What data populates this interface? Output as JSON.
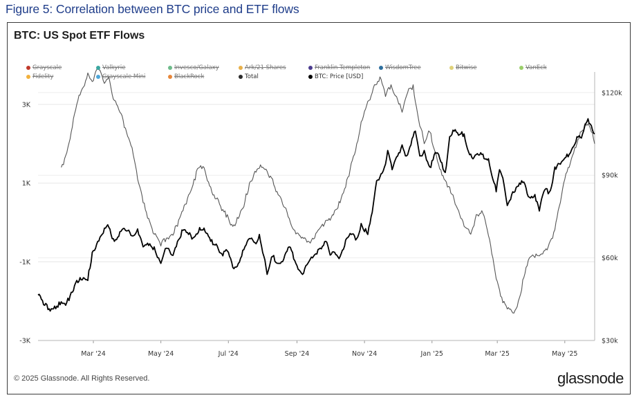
{
  "figure_title": "Figure 5: Correlation between BTC price and ETF flows",
  "copyright": "© 2025 Glassnode. All Rights Reserved.",
  "brand": "glassnode",
  "chart_data": {
    "type": "line",
    "title": "BTC: US Spot ETF Flows",
    "legend_placement": "top",
    "grid": true,
    "legend": [
      {
        "name": "Grayscale",
        "color": "#c0392b",
        "enabled": false
      },
      {
        "name": "Valkyrie",
        "color": "#3aa7a0",
        "enabled": false
      },
      {
        "name": "Invesco/Galaxy",
        "color": "#6dbb8a",
        "enabled": false
      },
      {
        "name": "Ark/21 Shares",
        "color": "#e8b04a",
        "enabled": false
      },
      {
        "name": "Franklin Templeton",
        "color": "#4b3c8f",
        "enabled": false
      },
      {
        "name": "WisdomTree",
        "color": "#2e6f9e",
        "enabled": false
      },
      {
        "name": "Bitwise",
        "color": "#e0d27a",
        "enabled": false
      },
      {
        "name": "VanEck",
        "color": "#9bcf6a",
        "enabled": false
      },
      {
        "name": "Fidelity",
        "color": "#f2b13c",
        "enabled": false
      },
      {
        "name": "Grayscale Mini",
        "color": "#4ea6d8",
        "enabled": false
      },
      {
        "name": "BlackRock",
        "color": "#e8873a",
        "enabled": false
      },
      {
        "name": "Total",
        "color": "#2b2b2b",
        "enabled": true
      },
      {
        "name": "BTC: Price [USD]",
        "color": "#000000",
        "enabled": true
      }
    ],
    "x_ticks": [
      "Mar '24",
      "May '24",
      "Jul '24",
      "Sep '24",
      "Nov '24",
      "Jan '25",
      "Mar '25",
      "May '25"
    ],
    "x_range": [
      "2024-01-11",
      "2025-05-28"
    ],
    "y_left": {
      "ticks": [
        "-3K",
        "-1K",
        "1K",
        "3K"
      ],
      "range": [
        -3000,
        4000
      ]
    },
    "y_right": {
      "ticks": [
        "$30k",
        "$60k",
        "$90k",
        "$120k"
      ],
      "range": [
        30000,
        130000
      ]
    },
    "series": [
      {
        "name": "Total",
        "axis": "left",
        "color": "#555555",
        "points": [
          [
            "2024-02-01",
            1400
          ],
          [
            "2024-02-05",
            1700
          ],
          [
            "2024-02-10",
            2300
          ],
          [
            "2024-02-15",
            3000
          ],
          [
            "2024-02-20",
            3400
          ],
          [
            "2024-02-25",
            3800
          ],
          [
            "2024-03-01",
            3600
          ],
          [
            "2024-03-05",
            3900
          ],
          [
            "2024-03-10",
            3600
          ],
          [
            "2024-03-15",
            3700
          ],
          [
            "2024-03-20",
            3100
          ],
          [
            "2024-03-25",
            2800
          ],
          [
            "2024-03-30",
            2400
          ],
          [
            "2024-04-05",
            1900
          ],
          [
            "2024-04-10",
            1100
          ],
          [
            "2024-04-15",
            500
          ],
          [
            "2024-04-20",
            100
          ],
          [
            "2024-04-25",
            -300
          ],
          [
            "2024-05-01",
            -600
          ],
          [
            "2024-05-06",
            -400
          ],
          [
            "2024-05-11",
            -300
          ],
          [
            "2024-05-16",
            -100
          ],
          [
            "2024-05-21",
            300
          ],
          [
            "2024-05-26",
            700
          ],
          [
            "2024-05-31",
            1100
          ],
          [
            "2024-06-05",
            1400
          ],
          [
            "2024-06-10",
            1300
          ],
          [
            "2024-06-15",
            900
          ],
          [
            "2024-06-20",
            600
          ],
          [
            "2024-06-25",
            300
          ],
          [
            "2024-06-30",
            200
          ],
          [
            "2024-07-05",
            -100
          ],
          [
            "2024-07-10",
            100
          ],
          [
            "2024-07-15",
            400
          ],
          [
            "2024-07-20",
            1000
          ],
          [
            "2024-07-25",
            1300
          ],
          [
            "2024-07-31",
            1400
          ],
          [
            "2024-08-05",
            1300
          ],
          [
            "2024-08-10",
            1100
          ],
          [
            "2024-08-15",
            700
          ],
          [
            "2024-08-20",
            400
          ],
          [
            "2024-08-25",
            100
          ],
          [
            "2024-08-30",
            -200
          ],
          [
            "2024-09-05",
            -400
          ],
          [
            "2024-09-10",
            -500
          ],
          [
            "2024-09-15",
            -400
          ],
          [
            "2024-09-20",
            -200
          ],
          [
            "2024-09-25",
            -100
          ],
          [
            "2024-09-30",
            100
          ],
          [
            "2024-10-05",
            300
          ],
          [
            "2024-10-10",
            500
          ],
          [
            "2024-10-15",
            900
          ],
          [
            "2024-10-20",
            1500
          ],
          [
            "2024-10-25",
            2000
          ],
          [
            "2024-10-30",
            2600
          ],
          [
            "2024-11-05",
            3100
          ],
          [
            "2024-11-10",
            3500
          ],
          [
            "2024-11-15",
            3700
          ],
          [
            "2024-11-20",
            3200
          ],
          [
            "2024-11-25",
            3500
          ],
          [
            "2024-11-30",
            3200
          ],
          [
            "2024-12-05",
            2800
          ],
          [
            "2024-12-10",
            3300
          ],
          [
            "2024-12-15",
            3500
          ],
          [
            "2024-12-20",
            2600
          ],
          [
            "2024-12-25",
            2000
          ],
          [
            "2024-12-30",
            2300
          ],
          [
            "2025-01-05",
            1700
          ],
          [
            "2025-01-10",
            1200
          ],
          [
            "2025-01-15",
            900
          ],
          [
            "2025-01-20",
            700
          ],
          [
            "2025-01-25",
            300
          ],
          [
            "2025-01-30",
            -100
          ],
          [
            "2025-02-05",
            -300
          ],
          [
            "2025-02-10",
            200
          ],
          [
            "2025-02-15",
            300
          ],
          [
            "2025-02-20",
            -200
          ],
          [
            "2025-02-25",
            -900
          ],
          [
            "2025-03-01",
            -1500
          ],
          [
            "2025-03-05",
            -1900
          ],
          [
            "2025-03-10",
            -2200
          ],
          [
            "2025-03-15",
            -2300
          ],
          [
            "2025-03-20",
            -2000
          ],
          [
            "2025-03-25",
            -1400
          ],
          [
            "2025-03-30",
            -900
          ],
          [
            "2025-04-05",
            -800
          ],
          [
            "2025-04-10",
            -800
          ],
          [
            "2025-04-15",
            -700
          ],
          [
            "2025-04-20",
            -400
          ],
          [
            "2025-04-25",
            300
          ],
          [
            "2025-04-30",
            1000
          ],
          [
            "2025-05-05",
            1400
          ],
          [
            "2025-05-10",
            1900
          ],
          [
            "2025-05-15",
            2300
          ],
          [
            "2025-05-20",
            2500
          ],
          [
            "2025-05-25",
            2300
          ],
          [
            "2025-05-28",
            2000
          ]
        ]
      },
      {
        "name": "BTC: Price [USD]",
        "axis": "right",
        "color": "#000000",
        "points": [
          [
            "2024-01-11",
            46500
          ],
          [
            "2024-01-16",
            43000
          ],
          [
            "2024-01-21",
            41500
          ],
          [
            "2024-01-26",
            42500
          ],
          [
            "2024-01-31",
            43000
          ],
          [
            "2024-02-05",
            42800
          ],
          [
            "2024-02-10",
            47500
          ],
          [
            "2024-02-15",
            51800
          ],
          [
            "2024-02-20",
            52000
          ],
          [
            "2024-02-25",
            51800
          ],
          [
            "2024-02-29",
            62000
          ],
          [
            "2024-03-05",
            66000
          ],
          [
            "2024-03-10",
            69000
          ],
          [
            "2024-03-14",
            72000
          ],
          [
            "2024-03-20",
            66000
          ],
          [
            "2024-03-25",
            69500
          ],
          [
            "2024-03-30",
            70000
          ],
          [
            "2024-04-05",
            68000
          ],
          [
            "2024-04-10",
            70500
          ],
          [
            "2024-04-15",
            64000
          ],
          [
            "2024-04-20",
            64500
          ],
          [
            "2024-04-25",
            64000
          ],
          [
            "2024-05-01",
            58000
          ],
          [
            "2024-05-06",
            63500
          ],
          [
            "2024-05-11",
            61000
          ],
          [
            "2024-05-16",
            66000
          ],
          [
            "2024-05-21",
            70000
          ],
          [
            "2024-05-26",
            68500
          ],
          [
            "2024-05-31",
            67500
          ],
          [
            "2024-06-05",
            71000
          ],
          [
            "2024-06-10",
            69500
          ],
          [
            "2024-06-15",
            66000
          ],
          [
            "2024-06-20",
            65000
          ],
          [
            "2024-06-25",
            61500
          ],
          [
            "2024-06-30",
            62500
          ],
          [
            "2024-07-05",
            56500
          ],
          [
            "2024-07-10",
            58000
          ],
          [
            "2024-07-15",
            63000
          ],
          [
            "2024-07-20",
            67000
          ],
          [
            "2024-07-25",
            65500
          ],
          [
            "2024-07-29",
            68500
          ],
          [
            "2024-08-05",
            54000
          ],
          [
            "2024-08-10",
            60500
          ],
          [
            "2024-08-15",
            58000
          ],
          [
            "2024-08-20",
            59500
          ],
          [
            "2024-08-25",
            64000
          ],
          [
            "2024-08-30",
            59000
          ],
          [
            "2024-09-06",
            54000
          ],
          [
            "2024-09-10",
            57500
          ],
          [
            "2024-09-15",
            60000
          ],
          [
            "2024-09-20",
            63000
          ],
          [
            "2024-09-27",
            66000
          ],
          [
            "2024-10-01",
            61000
          ],
          [
            "2024-10-05",
            62000
          ],
          [
            "2024-10-10",
            60500
          ],
          [
            "2024-10-15",
            66500
          ],
          [
            "2024-10-20",
            68500
          ],
          [
            "2024-10-25",
            67000
          ],
          [
            "2024-10-29",
            72500
          ],
          [
            "2024-11-04",
            68500
          ],
          [
            "2024-11-08",
            76500
          ],
          [
            "2024-11-12",
            88000
          ],
          [
            "2024-11-16",
            90500
          ],
          [
            "2024-11-20",
            94000
          ],
          [
            "2024-11-22",
            99000
          ],
          [
            "2024-11-26",
            92000
          ],
          [
            "2024-12-01",
            97000
          ],
          [
            "2024-12-05",
            101000
          ],
          [
            "2024-12-09",
            97000
          ],
          [
            "2024-12-13",
            101000
          ],
          [
            "2024-12-17",
            106000
          ],
          [
            "2024-12-21",
            97000
          ],
          [
            "2024-12-25",
            99000
          ],
          [
            "2024-12-30",
            93000
          ],
          [
            "2025-01-05",
            98000
          ],
          [
            "2025-01-10",
            94500
          ],
          [
            "2025-01-13",
            91000
          ],
          [
            "2025-01-17",
            104000
          ],
          [
            "2025-01-21",
            106000
          ],
          [
            "2025-01-25",
            104500
          ],
          [
            "2025-01-30",
            105000
          ],
          [
            "2025-02-03",
            98500
          ],
          [
            "2025-02-08",
            96500
          ],
          [
            "2025-02-15",
            97500
          ],
          [
            "2025-02-21",
            96000
          ],
          [
            "2025-02-25",
            88500
          ],
          [
            "2025-02-28",
            84000
          ],
          [
            "2025-03-03",
            92000
          ],
          [
            "2025-03-06",
            89000
          ],
          [
            "2025-03-10",
            79000
          ],
          [
            "2025-03-15",
            84000
          ],
          [
            "2025-03-20",
            86000
          ],
          [
            "2025-03-25",
            87500
          ],
          [
            "2025-03-30",
            82000
          ],
          [
            "2025-04-04",
            83000
          ],
          [
            "2025-04-08",
            77000
          ],
          [
            "2025-04-12",
            84000
          ],
          [
            "2025-04-18",
            84500
          ],
          [
            "2025-04-22",
            93000
          ],
          [
            "2025-04-27",
            94000
          ],
          [
            "2025-05-02",
            96500
          ],
          [
            "2025-05-08",
            100000
          ],
          [
            "2025-05-12",
            104000
          ],
          [
            "2025-05-16",
            103500
          ],
          [
            "2025-05-22",
            110500
          ],
          [
            "2025-05-25",
            108000
          ],
          [
            "2025-05-28",
            105000
          ]
        ]
      }
    ]
  }
}
